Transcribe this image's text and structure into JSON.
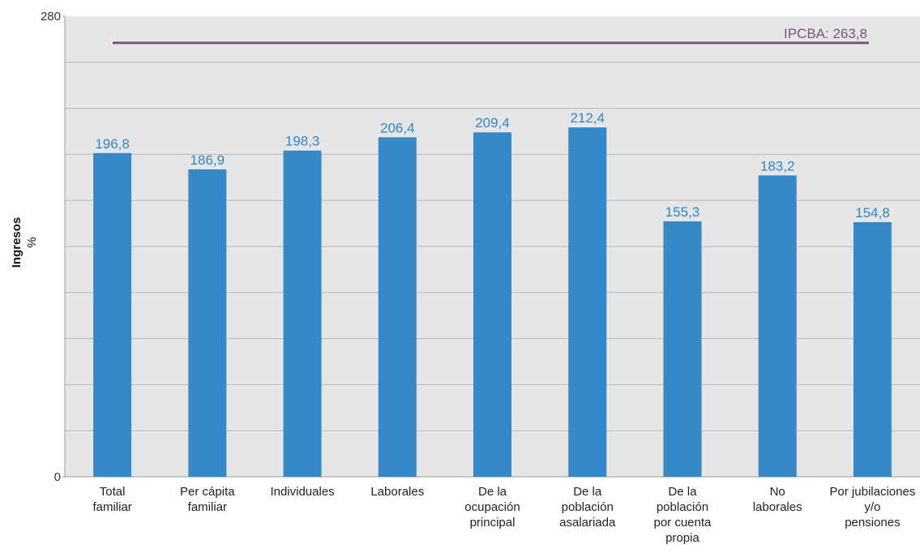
{
  "chart_data": {
    "type": "bar",
    "ylabel": "Ingresos",
    "ylabel_unit": "%",
    "ylim": [
      0,
      280
    ],
    "y_ticks_labeled": [
      "0",
      "280"
    ],
    "grid": true,
    "categories": [
      [
        "Total",
        "familiar"
      ],
      [
        "Per cápita",
        "familiar"
      ],
      [
        "Individuales"
      ],
      [
        "Laborales"
      ],
      [
        "De la",
        "ocupación",
        "principal"
      ],
      [
        "De la",
        "población",
        "asalariada"
      ],
      [
        "De la",
        "población",
        "por cuenta",
        "propia"
      ],
      [
        "No",
        "laborales"
      ],
      [
        "Por jubilaciones",
        "y/o",
        "pensiones"
      ]
    ],
    "values": [
      196.8,
      186.9,
      198.3,
      206.4,
      209.4,
      212.4,
      155.3,
      183.2,
      154.8
    ],
    "value_labels": [
      "196,8",
      "186,9",
      "198,3",
      "206,4",
      "209,4",
      "212,4",
      "155,3",
      "183,2",
      "154,8"
    ],
    "reference_line": {
      "label": "IPCBA: 263,8",
      "value": 263.8
    },
    "colors": {
      "bar": "#3589c9",
      "value_label": "#2f86c8",
      "reference": "#7d4f82",
      "plot_bg": "#e6e6e6",
      "grid": "#b8b8b8"
    }
  }
}
